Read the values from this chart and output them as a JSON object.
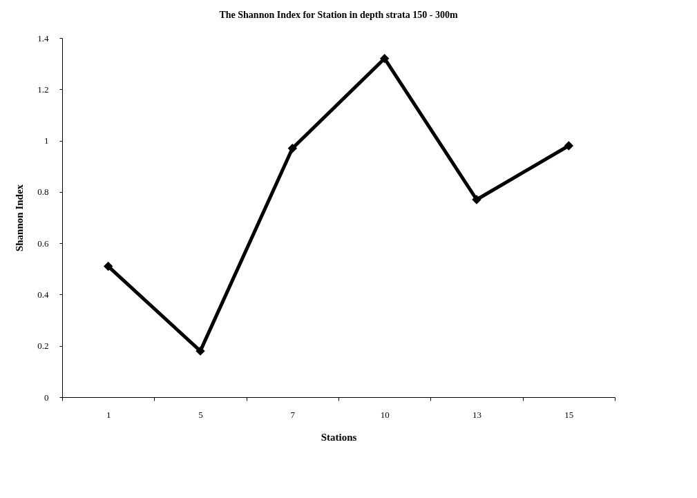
{
  "chart_data": {
    "type": "line",
    "title": "The Shannon Index for Station in depth strata 150 - 300m",
    "xlabel": "Stations",
    "ylabel": "Shannon Index",
    "categories": [
      "1",
      "5",
      "7",
      "10",
      "13",
      "15"
    ],
    "series": [
      {
        "color": "#000000",
        "values": [
          0.51,
          0.18,
          0.97,
          1.32,
          0.77,
          0.98
        ]
      }
    ],
    "ylim": [
      0,
      1.4
    ],
    "yticks": [
      0,
      0.2,
      0.4,
      0.6,
      0.8,
      1,
      1.2,
      1.4
    ],
    "grid": false,
    "marker": "diamond",
    "line_style": "solid"
  }
}
